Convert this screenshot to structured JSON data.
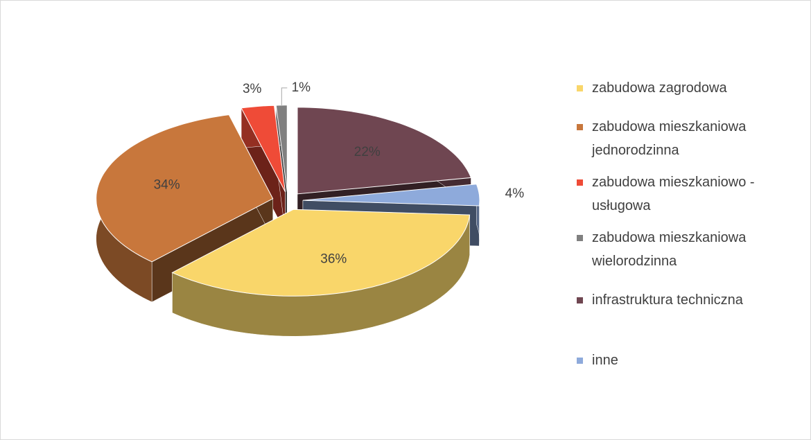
{
  "chart_data": {
    "type": "pie",
    "categories": [
      "zabudowa zagrodowa",
      "zabudowa mieszkaniowa jednorodzinna",
      "zabudowa mieszkaniowo - usługowa",
      "zabudowa mieszkaniowa wielorodzinna",
      "infrastruktura techniczna",
      "inne"
    ],
    "values": [
      36,
      34,
      3,
      1,
      22,
      4
    ],
    "value_labels": [
      "36%",
      "34%",
      "3%",
      "1%",
      "22%",
      "4%"
    ],
    "colors": [
      "#f9d66a",
      "#c8773c",
      "#ef4b37",
      "#808080",
      "#6f4651",
      "#8eaadb"
    ],
    "legend": "right"
  }
}
